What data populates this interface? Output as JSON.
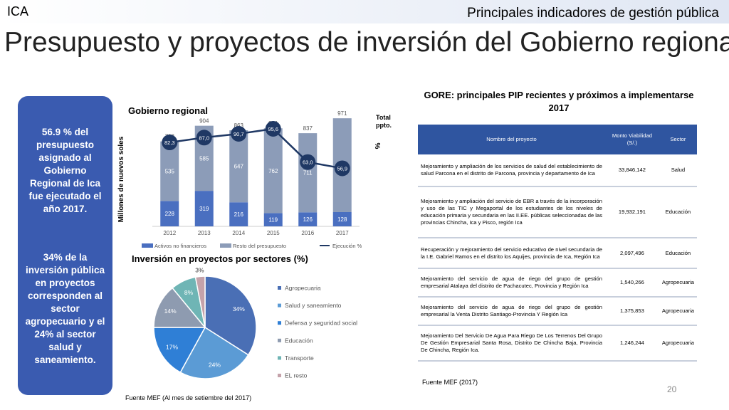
{
  "header": {
    "brand": "ICA",
    "section": "Principales indicadores de gestión pública",
    "title": "Presupuesto y proyectos de inversión del Gobierno regional"
  },
  "sidebar": [
    "56.9 % del presupuesto asignado al Gobierno Regional de Ica fue ejecutado el año 2017.",
    "34% de la inversión pública en proyectos corresponden  al sector agropecuario y el 24% al sector salud y saneamiento."
  ],
  "chart_data": [
    {
      "type": "bar",
      "title": "Gobierno regional",
      "y_label": "Millones de nuevos soles",
      "y2_label": "%",
      "annotation": "Total ppto.",
      "stacked": true,
      "categories": [
        "2012",
        "2013",
        "2014",
        "2015",
        "2016",
        "2017"
      ],
      "series": [
        {
          "name": "Activos no financieros",
          "color": "#4a6fc0",
          "values": [
            228,
            319,
            216,
            119,
            126,
            128
          ]
        },
        {
          "name": "Resto del presupuesto",
          "color": "#8c9cb8",
          "values": [
            535,
            585,
            647,
            762,
            711,
            843
          ]
        },
        {
          "name": "Ejecución %",
          "color": "#1f3864",
          "type": "line",
          "axis": "y2",
          "values": [
            82.3,
            87.0,
            90.7,
            95.6,
            63.0,
            56.9
          ],
          "value_labels": [
            "82,3",
            "87,0",
            "90,7",
            "95,6",
            "63,0",
            "56,9"
          ]
        }
      ],
      "totals": [
        763,
        904,
        863,
        881,
        837,
        971
      ],
      "ylim": [
        0,
        1100
      ],
      "y2lim": [
        0,
        120
      ],
      "legend": "bottom"
    },
    {
      "type": "pie",
      "title": "Inversión en proyectos por sectores (%)",
      "categories": [
        "Agropecuaria",
        "Salud y saneamiento",
        "Defensa y seguridad social",
        "Educación",
        "Transporte",
        "EL resto"
      ],
      "values": [
        34,
        24,
        17,
        14,
        8,
        3
      ],
      "value_labels": [
        "34%",
        "24%",
        "17%",
        "14%",
        "8%",
        "3%"
      ],
      "colors": [
        "#4a6fb5",
        "#5b9bd5",
        "#2f7fd6",
        "#8e9bb0",
        "#6fb5b5",
        "#c4a2aa"
      ],
      "legend": "right"
    }
  ],
  "table": {
    "title": "GORE: principales PIP recientes y próximos a implementarse 2017",
    "columns": [
      "Nombre del proyecto",
      "Monto Viabilidad (S/.)",
      "Sector"
    ],
    "rows": [
      [
        "Mejoramiento y ampliación de los servicios de salud del establecimiento de salud Parcona en el distrito de Parcona, provincia y departamento de Ica",
        "33,846,142",
        "Salud"
      ],
      [
        "Mejoramiento y ampliación del servicio de EBR a través de la incorporación y uso de las TIC y Megaportal de los estudiantes de los niveles de educación primaria y secundaria en las II.EE. públicas seleccionadas de las provincias Chincha, Ica y Pisco, región Ica",
        "19,932,191",
        "Educación"
      ],
      [
        "Recuperación y mejoramiento del servicio educativo de nivel secundaria de la I.E. Gabriel Ramos en el distrito  los Aquijes, provincia de Ica, Región Ica",
        "2,097,496",
        "Educación"
      ],
      [
        "Mejoramiento del servicio de agua de riego del grupo de gestión empresarial Atalaya del distrito de Pachacutec, Provincia y Región Ica",
        "1,540,266",
        "Agropecuaria"
      ],
      [
        "Mejoramiento del servicio de agua de riego del grupo de gestión empresarial la Venta Distrito Santiago-Provincia Y Región Ica",
        "1,375,853",
        "Agropecuaria"
      ],
      [
        "Mejoramiento Del Servicio De Agua Para Riego De Los Terrenos Del Grupo De Gestión Empresarial Santa Rosa, Distrito De Chincha Baja, Provincia De Chincha, Región Ica.",
        "1,246,244",
        "Agropecuaria"
      ]
    ]
  },
  "footer": {
    "source_left": "Fuente MEF (Al mes de setiembre del 2017)",
    "source_right": "Fuente MEF (2017)",
    "page": "20"
  }
}
